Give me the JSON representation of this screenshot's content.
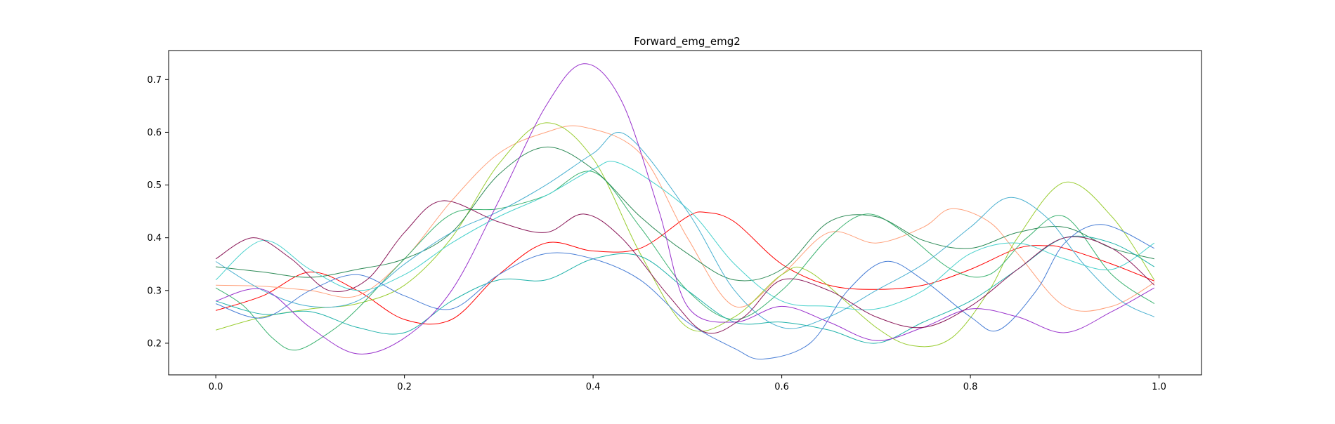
{
  "chart_data": {
    "type": "line",
    "title": "Forward_emg_emg2",
    "xlabel": "",
    "ylabel": "",
    "xlim": [
      -0.05,
      1.045
    ],
    "ylim": [
      0.14,
      0.755
    ],
    "xticks": [
      0.0,
      0.2,
      0.4,
      0.6,
      0.8,
      1.0
    ],
    "xtick_labels": [
      "0.0",
      "0.2",
      "0.4",
      "0.6",
      "0.8",
      "1.0"
    ],
    "yticks": [
      0.2,
      0.3,
      0.4,
      0.5,
      0.6,
      0.7
    ],
    "ytick_labels": [
      "0.2",
      "0.3",
      "0.4",
      "0.5",
      "0.6",
      "0.7"
    ],
    "grid": false,
    "legend": "none",
    "series": [
      {
        "color": "#ff0000",
        "points": [
          [
            0.0,
            0.262
          ],
          [
            0.05,
            0.29
          ],
          [
            0.1,
            0.335
          ],
          [
            0.15,
            0.3
          ],
          [
            0.2,
            0.245
          ],
          [
            0.25,
            0.245
          ],
          [
            0.3,
            0.33
          ],
          [
            0.35,
            0.39
          ],
          [
            0.4,
            0.375
          ],
          [
            0.45,
            0.38
          ],
          [
            0.5,
            0.44
          ],
          [
            0.52,
            0.448
          ],
          [
            0.55,
            0.43
          ],
          [
            0.6,
            0.35
          ],
          [
            0.65,
            0.31
          ],
          [
            0.7,
            0.302
          ],
          [
            0.75,
            0.31
          ],
          [
            0.8,
            0.34
          ],
          [
            0.85,
            0.38
          ],
          [
            0.88,
            0.385
          ],
          [
            0.9,
            0.38
          ],
          [
            0.95,
            0.35
          ],
          [
            0.995,
            0.318
          ]
        ]
      },
      {
        "color": "#ffa07a",
        "points": [
          [
            0.0,
            0.31
          ],
          [
            0.05,
            0.308
          ],
          [
            0.1,
            0.3
          ],
          [
            0.15,
            0.29
          ],
          [
            0.2,
            0.36
          ],
          [
            0.25,
            0.47
          ],
          [
            0.3,
            0.56
          ],
          [
            0.35,
            0.6
          ],
          [
            0.39,
            0.61
          ],
          [
            0.45,
            0.56
          ],
          [
            0.5,
            0.4
          ],
          [
            0.55,
            0.27
          ],
          [
            0.6,
            0.33
          ],
          [
            0.65,
            0.41
          ],
          [
            0.7,
            0.39
          ],
          [
            0.75,
            0.42
          ],
          [
            0.78,
            0.455
          ],
          [
            0.82,
            0.43
          ],
          [
            0.85,
            0.37
          ],
          [
            0.9,
            0.27
          ],
          [
            0.95,
            0.27
          ],
          [
            0.995,
            0.315
          ]
        ]
      },
      {
        "color": "#9acd32",
        "points": [
          [
            0.0,
            0.225
          ],
          [
            0.05,
            0.25
          ],
          [
            0.1,
            0.265
          ],
          [
            0.15,
            0.275
          ],
          [
            0.2,
            0.31
          ],
          [
            0.25,
            0.4
          ],
          [
            0.3,
            0.54
          ],
          [
            0.35,
            0.618
          ],
          [
            0.4,
            0.55
          ],
          [
            0.45,
            0.37
          ],
          [
            0.5,
            0.23
          ],
          [
            0.55,
            0.25
          ],
          [
            0.6,
            0.33
          ],
          [
            0.63,
            0.335
          ],
          [
            0.7,
            0.23
          ],
          [
            0.74,
            0.195
          ],
          [
            0.78,
            0.21
          ],
          [
            0.82,
            0.3
          ],
          [
            0.85,
            0.4
          ],
          [
            0.9,
            0.505
          ],
          [
            0.95,
            0.44
          ],
          [
            0.995,
            0.32
          ]
        ]
      },
      {
        "color": "#3cb371",
        "points": [
          [
            0.0,
            0.305
          ],
          [
            0.03,
            0.27
          ],
          [
            0.06,
            0.21
          ],
          [
            0.085,
            0.187
          ],
          [
            0.12,
            0.22
          ],
          [
            0.15,
            0.265
          ],
          [
            0.2,
            0.36
          ],
          [
            0.25,
            0.445
          ],
          [
            0.3,
            0.455
          ],
          [
            0.35,
            0.48
          ],
          [
            0.4,
            0.525
          ],
          [
            0.45,
            0.42
          ],
          [
            0.5,
            0.3
          ],
          [
            0.55,
            0.245
          ],
          [
            0.6,
            0.3
          ],
          [
            0.65,
            0.4
          ],
          [
            0.69,
            0.445
          ],
          [
            0.73,
            0.41
          ],
          [
            0.78,
            0.34
          ],
          [
            0.82,
            0.33
          ],
          [
            0.86,
            0.4
          ],
          [
            0.9,
            0.44
          ],
          [
            0.95,
            0.33
          ],
          [
            0.995,
            0.275
          ]
        ]
      },
      {
        "color": "#2e8b57",
        "points": [
          [
            0.0,
            0.345
          ],
          [
            0.05,
            0.335
          ],
          [
            0.1,
            0.325
          ],
          [
            0.15,
            0.34
          ],
          [
            0.2,
            0.36
          ],
          [
            0.25,
            0.41
          ],
          [
            0.3,
            0.52
          ],
          [
            0.35,
            0.572
          ],
          [
            0.4,
            0.53
          ],
          [
            0.45,
            0.44
          ],
          [
            0.5,
            0.37
          ],
          [
            0.55,
            0.32
          ],
          [
            0.6,
            0.34
          ],
          [
            0.65,
            0.43
          ],
          [
            0.7,
            0.44
          ],
          [
            0.75,
            0.395
          ],
          [
            0.8,
            0.38
          ],
          [
            0.85,
            0.41
          ],
          [
            0.9,
            0.42
          ],
          [
            0.95,
            0.38
          ],
          [
            0.995,
            0.36
          ]
        ]
      },
      {
        "color": "#48d1cc",
        "points": [
          [
            0.0,
            0.32
          ],
          [
            0.05,
            0.395
          ],
          [
            0.1,
            0.34
          ],
          [
            0.15,
            0.3
          ],
          [
            0.2,
            0.33
          ],
          [
            0.25,
            0.39
          ],
          [
            0.3,
            0.44
          ],
          [
            0.35,
            0.48
          ],
          [
            0.4,
            0.53
          ],
          [
            0.43,
            0.54
          ],
          [
            0.5,
            0.455
          ],
          [
            0.55,
            0.35
          ],
          [
            0.6,
            0.28
          ],
          [
            0.65,
            0.27
          ],
          [
            0.7,
            0.265
          ],
          [
            0.75,
            0.3
          ],
          [
            0.8,
            0.37
          ],
          [
            0.85,
            0.39
          ],
          [
            0.9,
            0.36
          ],
          [
            0.95,
            0.34
          ],
          [
            0.995,
            0.39
          ]
        ]
      },
      {
        "color": "#4ab0d0",
        "points": [
          [
            0.0,
            0.355
          ],
          [
            0.05,
            0.3
          ],
          [
            0.1,
            0.27
          ],
          [
            0.15,
            0.28
          ],
          [
            0.2,
            0.35
          ],
          [
            0.25,
            0.41
          ],
          [
            0.3,
            0.45
          ],
          [
            0.35,
            0.5
          ],
          [
            0.4,
            0.56
          ],
          [
            0.435,
            0.595
          ],
          [
            0.5,
            0.45
          ],
          [
            0.55,
            0.3
          ],
          [
            0.6,
            0.23
          ],
          [
            0.65,
            0.25
          ],
          [
            0.7,
            0.3
          ],
          [
            0.75,
            0.35
          ],
          [
            0.8,
            0.42
          ],
          [
            0.84,
            0.476
          ],
          [
            0.88,
            0.44
          ],
          [
            0.92,
            0.35
          ],
          [
            0.96,
            0.28
          ],
          [
            0.995,
            0.25
          ]
        ]
      },
      {
        "color": "#20b2aa",
        "points": [
          [
            0.0,
            0.28
          ],
          [
            0.05,
            0.255
          ],
          [
            0.1,
            0.26
          ],
          [
            0.15,
            0.23
          ],
          [
            0.2,
            0.22
          ],
          [
            0.25,
            0.28
          ],
          [
            0.3,
            0.32
          ],
          [
            0.35,
            0.32
          ],
          [
            0.4,
            0.36
          ],
          [
            0.45,
            0.365
          ],
          [
            0.5,
            0.3
          ],
          [
            0.55,
            0.24
          ],
          [
            0.6,
            0.24
          ],
          [
            0.65,
            0.225
          ],
          [
            0.7,
            0.2
          ],
          [
            0.75,
            0.24
          ],
          [
            0.8,
            0.28
          ],
          [
            0.85,
            0.34
          ],
          [
            0.9,
            0.4
          ],
          [
            0.95,
            0.39
          ],
          [
            0.995,
            0.345
          ]
        ]
      },
      {
        "color": "#4a7fd6",
        "points": [
          [
            0.0,
            0.275
          ],
          [
            0.05,
            0.248
          ],
          [
            0.1,
            0.3
          ],
          [
            0.15,
            0.33
          ],
          [
            0.2,
            0.29
          ],
          [
            0.25,
            0.265
          ],
          [
            0.3,
            0.33
          ],
          [
            0.35,
            0.37
          ],
          [
            0.4,
            0.36
          ],
          [
            0.45,
            0.32
          ],
          [
            0.5,
            0.24
          ],
          [
            0.55,
            0.19
          ],
          [
            0.58,
            0.17
          ],
          [
            0.63,
            0.2
          ],
          [
            0.67,
            0.3
          ],
          [
            0.71,
            0.355
          ],
          [
            0.75,
            0.32
          ],
          [
            0.8,
            0.25
          ],
          [
            0.83,
            0.225
          ],
          [
            0.87,
            0.3
          ],
          [
            0.9,
            0.39
          ],
          [
            0.94,
            0.425
          ],
          [
            0.995,
            0.38
          ]
        ]
      },
      {
        "color": "#9932cc",
        "points": [
          [
            0.0,
            0.28
          ],
          [
            0.05,
            0.302
          ],
          [
            0.1,
            0.23
          ],
          [
            0.15,
            0.18
          ],
          [
            0.2,
            0.21
          ],
          [
            0.25,
            0.3
          ],
          [
            0.3,
            0.47
          ],
          [
            0.35,
            0.65
          ],
          [
            0.39,
            0.73
          ],
          [
            0.43,
            0.66
          ],
          [
            0.47,
            0.45
          ],
          [
            0.5,
            0.27
          ],
          [
            0.55,
            0.24
          ],
          [
            0.6,
            0.27
          ],
          [
            0.65,
            0.24
          ],
          [
            0.7,
            0.205
          ],
          [
            0.75,
            0.23
          ],
          [
            0.8,
            0.265
          ],
          [
            0.85,
            0.25
          ],
          [
            0.9,
            0.22
          ],
          [
            0.95,
            0.26
          ],
          [
            0.995,
            0.305
          ]
        ]
      },
      {
        "color": "#8b1a5a",
        "points": [
          [
            0.0,
            0.36
          ],
          [
            0.04,
            0.4
          ],
          [
            0.08,
            0.36
          ],
          [
            0.12,
            0.3
          ],
          [
            0.16,
            0.32
          ],
          [
            0.2,
            0.41
          ],
          [
            0.24,
            0.47
          ],
          [
            0.3,
            0.43
          ],
          [
            0.35,
            0.41
          ],
          [
            0.39,
            0.445
          ],
          [
            0.43,
            0.4
          ],
          [
            0.48,
            0.29
          ],
          [
            0.52,
            0.22
          ],
          [
            0.56,
            0.25
          ],
          [
            0.6,
            0.32
          ],
          [
            0.65,
            0.3
          ],
          [
            0.7,
            0.25
          ],
          [
            0.75,
            0.23
          ],
          [
            0.8,
            0.27
          ],
          [
            0.85,
            0.34
          ],
          [
            0.9,
            0.4
          ],
          [
            0.95,
            0.38
          ],
          [
            0.995,
            0.31
          ]
        ]
      }
    ]
  }
}
